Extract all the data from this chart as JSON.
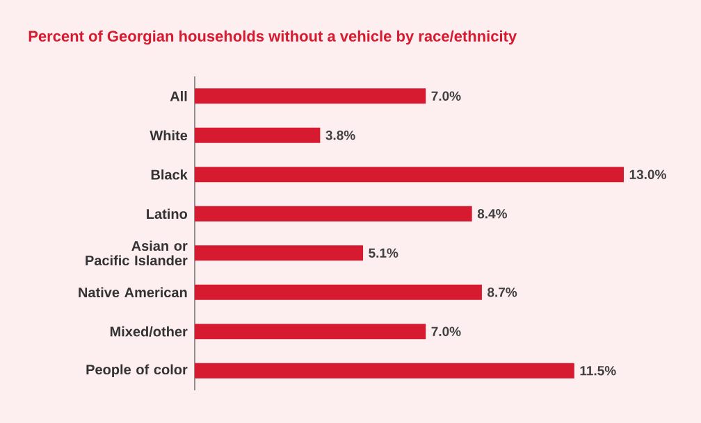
{
  "chart_data": {
    "type": "bar",
    "orientation": "horizontal",
    "title": "Percent of Georgian households without a vehicle by race/ethnicity",
    "categories": [
      "All",
      "White",
      "Black",
      "Latino",
      "Asian or Pacific Islander",
      "Native American",
      "Mixed/other",
      "People of color"
    ],
    "values": [
      7.0,
      3.8,
      13.0,
      8.4,
      5.1,
      8.7,
      7.0,
      11.5
    ],
    "value_labels": [
      "7.0%",
      "3.8%",
      "13.0%",
      "8.4%",
      "5.1%",
      "8.7%",
      "7.0%",
      "11.5%"
    ],
    "color": "#d61a30",
    "xlim": [
      0,
      13.0
    ],
    "tick_labels": "y"
  }
}
